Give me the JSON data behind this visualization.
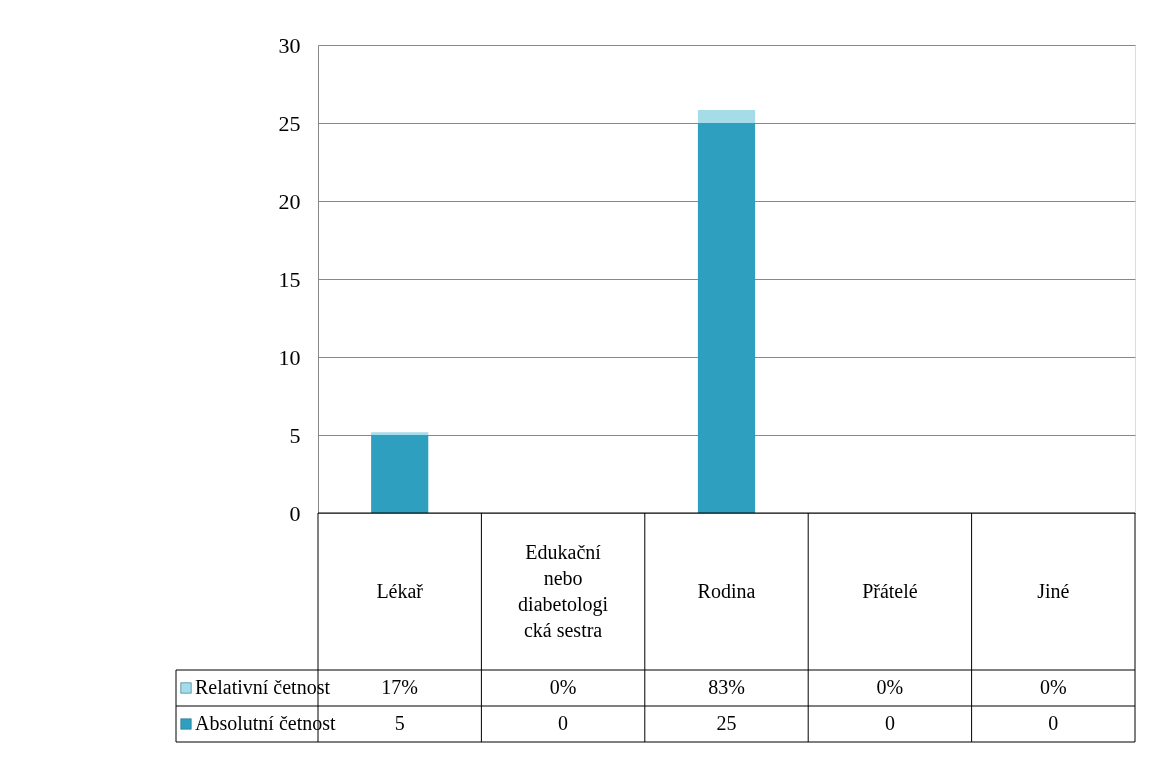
{
  "chart_data": {
    "type": "bar",
    "stacked": true,
    "categories": [
      "Lékař",
      "Edukační nebo diabetologická sestra",
      "Rodina",
      "Přátelé",
      "Jiné"
    ],
    "series": [
      {
        "name": "Absolutní četnost",
        "color": "#2f9fc0",
        "values": [
          5,
          0,
          25,
          0,
          0
        ],
        "value_labels": [
          "5",
          "0",
          "25",
          "0",
          "0"
        ]
      },
      {
        "name": "Relativní četnost",
        "color": "#a6dbe8",
        "values": [
          0.17,
          0,
          0.83,
          0,
          0
        ],
        "value_labels": [
          "17%",
          "0%",
          "83%",
          "0%",
          "0%"
        ]
      }
    ],
    "ylim": [
      0,
      30
    ],
    "yticks": [
      0,
      5,
      10,
      15,
      20,
      25,
      30
    ],
    "grid": "y",
    "legend": "bottom"
  }
}
